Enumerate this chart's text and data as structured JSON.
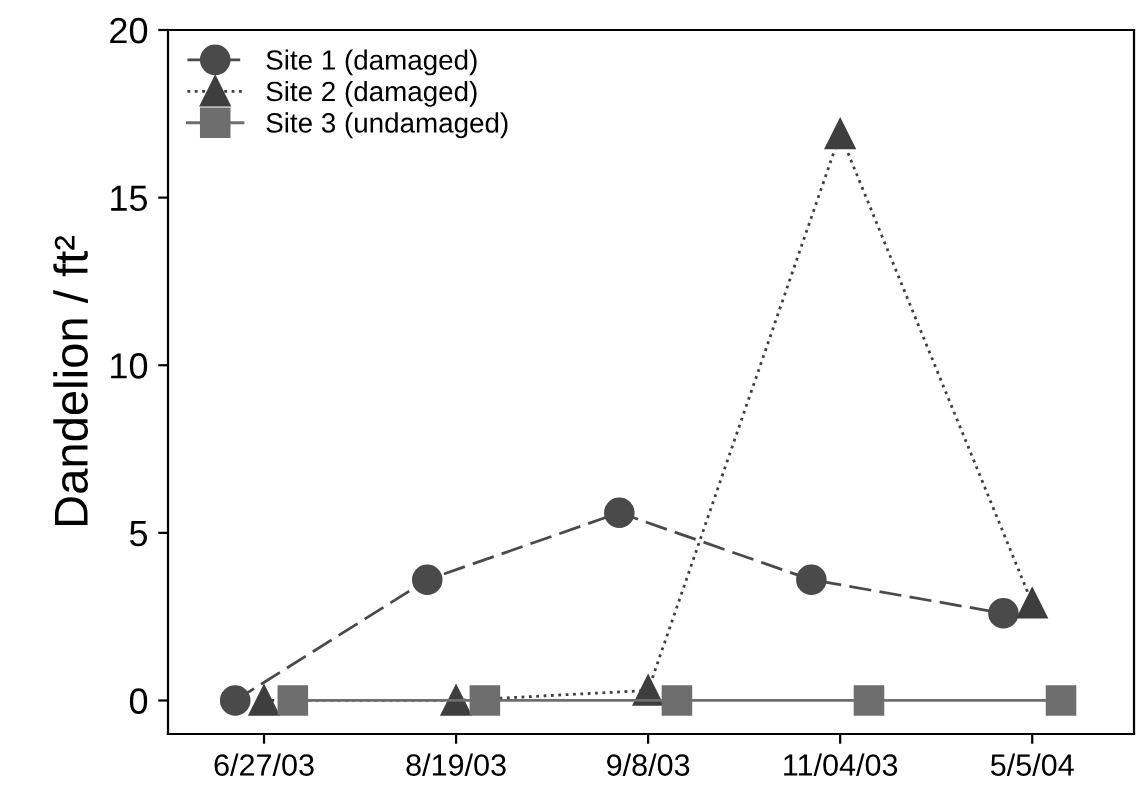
{
  "chart_data": {
    "type": "line",
    "ylabel": "Dandelion / ft²",
    "categories": [
      "6/27/03",
      "8/19/03",
      "9/8/03",
      "11/04/03",
      "5/5/04"
    ],
    "series": [
      {
        "name": "Site 1 (damaged)",
        "color": "#4a4a4a",
        "marker": "circle",
        "line_style": "dashed",
        "values": [
          0,
          3.6,
          5.6,
          3.6,
          2.6
        ]
      },
      {
        "name": "Site 2 (damaged)",
        "color": "#3e3e3e",
        "marker": "triangle",
        "line_style": "dotted",
        "values": [
          0,
          0,
          0.3,
          16.9,
          2.9
        ]
      },
      {
        "name": "Site 3 (undamaged)",
        "color": "#6e6e6e",
        "marker": "square",
        "line_style": "solid",
        "values": [
          0,
          0,
          0,
          0,
          0
        ]
      }
    ],
    "ylim": [
      -1,
      20
    ],
    "yticks": [
      0,
      5,
      10,
      15,
      20
    ],
    "grid": false,
    "legend": "top left"
  }
}
